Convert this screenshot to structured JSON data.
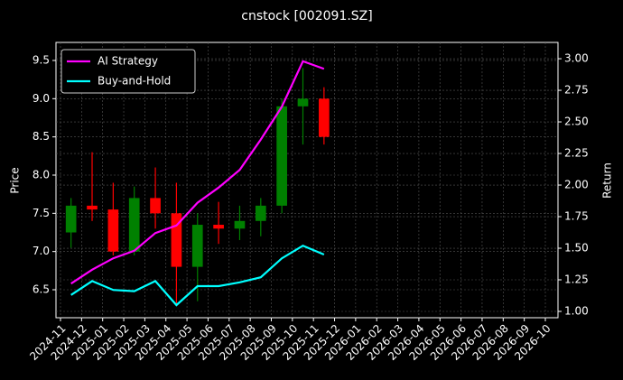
{
  "chart_data": {
    "type": "candlestick",
    "title": "cnstock [002091.SZ]",
    "ylabel": "Price",
    "y2label": "Return",
    "x": [
      "2024-11",
      "2024-12",
      "2025-01",
      "2025-02",
      "2025-03",
      "2025-04",
      "2025-05",
      "2025-06",
      "2025-07",
      "2025-08",
      "2025-09",
      "2025-10",
      "2025-11"
    ],
    "open": [
      7.25,
      7.6,
      7.55,
      7.0,
      7.7,
      7.5,
      6.8,
      7.35,
      7.3,
      7.4,
      7.6,
      8.9,
      9.0
    ],
    "high": [
      7.7,
      8.3,
      7.9,
      7.85,
      8.1,
      7.9,
      7.5,
      7.65,
      7.6,
      7.7,
      9.0,
      9.4,
      9.15
    ],
    "low": [
      7.05,
      7.4,
      6.95,
      6.95,
      7.3,
      6.3,
      6.35,
      7.1,
      7.15,
      7.2,
      7.5,
      8.4,
      8.4
    ],
    "close": [
      7.6,
      7.55,
      7.0,
      7.7,
      7.5,
      6.8,
      7.35,
      7.3,
      7.4,
      7.6,
      8.9,
      9.0,
      8.5
    ],
    "up_color": "#008000",
    "down_color": "#ff0000",
    "series": [
      {
        "name": "AI Strategy",
        "color": "#ff00ff",
        "axis": "y2",
        "values": [
          1.22,
          1.33,
          1.42,
          1.48,
          1.62,
          1.68,
          1.86,
          1.98,
          2.12,
          2.36,
          2.62,
          2.98,
          2.92
        ]
      },
      {
        "name": "Buy-and-Hold",
        "color": "#00ffff",
        "axis": "y2",
        "values": [
          1.13,
          1.24,
          1.17,
          1.16,
          1.24,
          1.05,
          1.2,
          1.2,
          1.23,
          1.27,
          1.42,
          1.52,
          1.45
        ]
      }
    ],
    "ylim": [
      6.134,
      9.736
    ],
    "yticks": [
      6.5,
      {
        "value": 7,
        "label": "7.0"
      },
      7.5,
      {
        "value": 8,
        "label": "8.0"
      },
      8.5,
      {
        "value": 9,
        "label": "9.0"
      },
      9.5
    ],
    "y2lim": [
      0.95,
      3.129
    ],
    "y2ticks": [
      {
        "value": 1,
        "label": "1.00"
      },
      {
        "value": 1.25,
        "label": "1.25"
      },
      {
        "value": 1.5,
        "label": "1.50"
      },
      {
        "value": 1.75,
        "label": "1.75"
      },
      {
        "value": 2,
        "label": "2.00"
      },
      {
        "value": 2.25,
        "label": "2.25"
      },
      {
        "value": 2.5,
        "label": "2.50"
      },
      {
        "value": 2.75,
        "label": "2.75"
      },
      {
        "value": 3,
        "label": "3.00"
      }
    ],
    "xticks": [
      "2024-11",
      "2024-12",
      "2025-01",
      "2025-02",
      "2025-03",
      "2025-04",
      "2025-05",
      "2025-06",
      "2025-07",
      "2025-08",
      "2025-09",
      "2025-10",
      "2025-11",
      "2025-12",
      "2026-01",
      "2026-02",
      "2026-03",
      "2026-04",
      "2026-05",
      "2026-06",
      "2026-07",
      "2026-08",
      "2026-09",
      "2026-10"
    ],
    "grid": true,
    "legend": "upper left"
  }
}
